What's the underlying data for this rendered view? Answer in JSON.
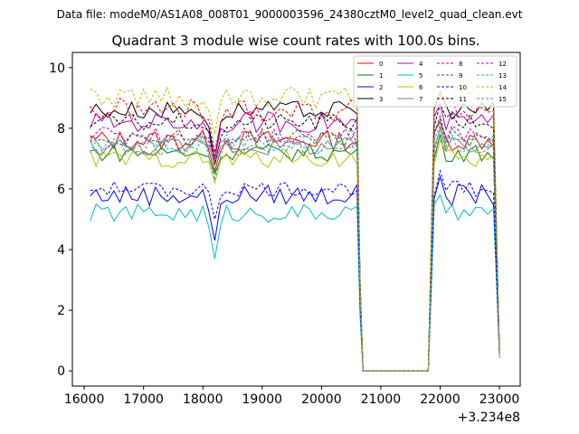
{
  "suptitle": "Data file: modeM0/AS1A08_008T01_9000003596_24380cztM0_level2_quad_clean.evt",
  "chart_data": {
    "type": "line",
    "title": "Quadrant 3 module wise count rates with 100.0s bins.",
    "xlabel": "",
    "ylabel": "",
    "x_offset_label": "+3.234e8",
    "xlim": [
      15800,
      23350
    ],
    "ylim": [
      -0.5,
      10.5
    ],
    "x_ticks": [
      16000,
      17000,
      18000,
      19000,
      20000,
      21000,
      22000,
      23000
    ],
    "x_tick_labels": [
      "16000",
      "17000",
      "18000",
      "19000",
      "20000",
      "21000",
      "22000",
      "23000"
    ],
    "y_ticks": [
      0,
      2,
      4,
      6,
      8,
      10
    ],
    "y_tick_labels": [
      "0",
      "2",
      "4",
      "6",
      "8",
      "10"
    ],
    "legend_position": "top-right",
    "segments": [
      {
        "x_start": 16100,
        "x_end": 20600,
        "dip_at": 18200
      },
      {
        "x_start": 20700,
        "x_end": 21800,
        "dip_at": null
      },
      {
        "x_start": 21900,
        "x_end": 23000,
        "dip_at": null
      }
    ],
    "series": [
      {
        "name": "0",
        "color": "#ff0000",
        "dash": false,
        "level": 7.6,
        "dip": 6.6,
        "amp": 0.35
      },
      {
        "name": "1",
        "color": "#008000",
        "dash": false,
        "level": 7.2,
        "dip": 6.5,
        "amp": 0.3
      },
      {
        "name": "2",
        "color": "#0000ff",
        "dash": false,
        "level": 5.8,
        "dip": 4.3,
        "amp": 0.35
      },
      {
        "name": "3",
        "color": "#000000",
        "dash": false,
        "level": 8.6,
        "dip": 7.0,
        "amp": 0.3
      },
      {
        "name": "4",
        "color": "#bf00bf",
        "dash": false,
        "level": 8.2,
        "dip": 7.0,
        "amp": 0.35
      },
      {
        "name": "5",
        "color": "#00bfbf",
        "dash": false,
        "level": 5.2,
        "dip": 3.7,
        "amp": 0.3
      },
      {
        "name": "6",
        "color": "#bfbf00",
        "dash": false,
        "level": 7.0,
        "dip": 6.2,
        "amp": 0.3
      },
      {
        "name": "7",
        "color": "#808080",
        "dash": false,
        "level": 7.4,
        "dip": 6.8,
        "amp": 0.3
      },
      {
        "name": "8",
        "color": "#ff0000",
        "dash": true,
        "level": 8.6,
        "dip": 7.2,
        "amp": 0.4
      },
      {
        "name": "9",
        "color": "#008000",
        "dash": true,
        "level": 7.7,
        "dip": 6.9,
        "amp": 0.3
      },
      {
        "name": "10",
        "color": "#0000ff",
        "dash": true,
        "level": 6.0,
        "dip": 5.0,
        "amp": 0.25
      },
      {
        "name": "11",
        "color": "#000000",
        "dash": true,
        "level": 8.2,
        "dip": 6.8,
        "amp": 0.3
      },
      {
        "name": "12",
        "color": "#bf00bf",
        "dash": true,
        "level": 7.8,
        "dip": 7.0,
        "amp": 0.3
      },
      {
        "name": "13",
        "color": "#00bfbf",
        "dash": true,
        "level": 7.5,
        "dip": 6.3,
        "amp": 0.3
      },
      {
        "name": "14",
        "color": "#bfbf00",
        "dash": true,
        "level": 9.0,
        "dip": 7.8,
        "amp": 0.4
      },
      {
        "name": "15",
        "color": "#808080",
        "dash": true,
        "level": 7.4,
        "dip": 6.9,
        "amp": 0.3
      }
    ]
  }
}
